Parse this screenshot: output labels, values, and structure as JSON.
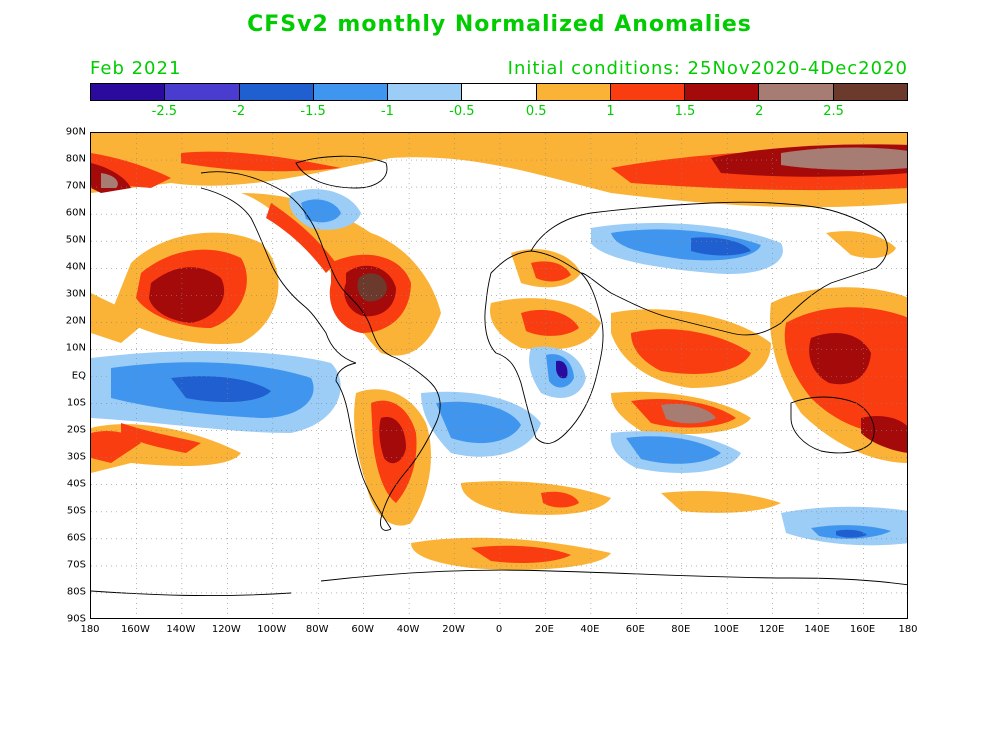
{
  "title": "CFSv2 monthly Normalized Anomalies",
  "month_label": "Feb 2021",
  "initial_conditions": "Initial conditions: 25Nov2020-4Dec2020",
  "colorbar": {
    "colors": [
      "#2b0b9e",
      "#4a3ccf",
      "#1f5fd0",
      "#4096ef",
      "#9ccdf7",
      "#ffffff",
      "#fbb337",
      "#fa3d10",
      "#a50a0a",
      "#a67c73",
      "#6b3a2c"
    ],
    "labels": [
      "-2.5",
      "-2",
      "-1.5",
      "-1",
      "-0.5",
      "0.5",
      "1",
      "1.5",
      "2",
      "2.5"
    ]
  },
  "map": {
    "lat_labels": [
      "90N",
      "80N",
      "70N",
      "60N",
      "50N",
      "40N",
      "30N",
      "20N",
      "10N",
      "EQ",
      "10S",
      "20S",
      "30S",
      "40S",
      "50S",
      "60S",
      "70S",
      "80S",
      "90S"
    ],
    "lon_labels": [
      "180",
      "160W",
      "140W",
      "120W",
      "100W",
      "80W",
      "60W",
      "40W",
      "20W",
      "0",
      "20E",
      "40E",
      "60E",
      "80E",
      "100E",
      "120E",
      "140E",
      "160E",
      "180"
    ]
  }
}
